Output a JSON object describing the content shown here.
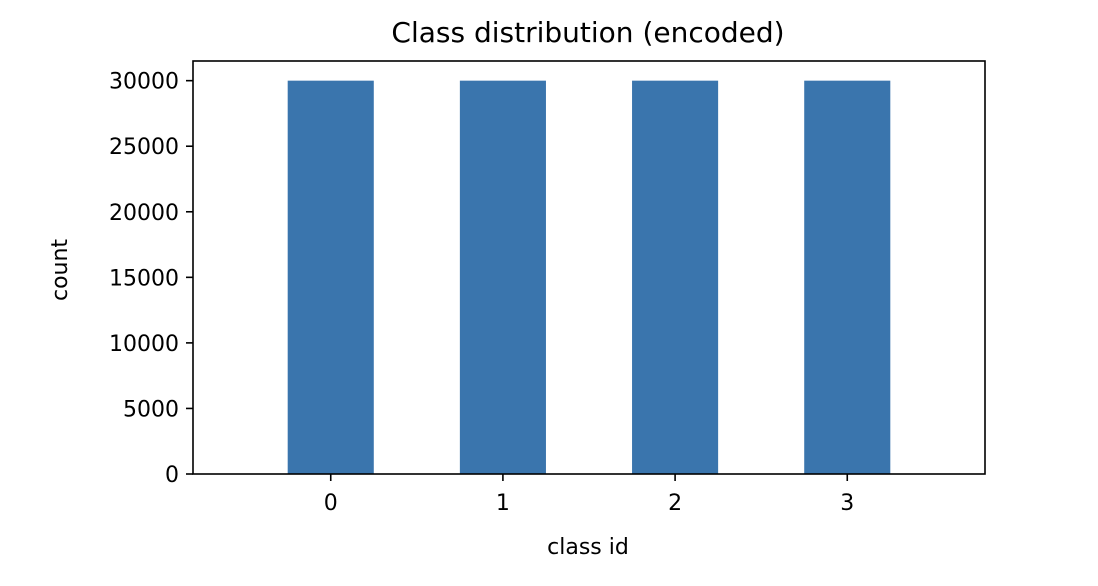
{
  "chart_data": {
    "type": "bar",
    "title": "Class distribution (encoded)",
    "xlabel": "class id",
    "ylabel": "count",
    "categories": [
      "0",
      "1",
      "2",
      "3"
    ],
    "values": [
      30000,
      30000,
      30000,
      30000
    ],
    "ylim": [
      0,
      31500
    ],
    "yticks": [
      0,
      5000,
      10000,
      15000,
      20000,
      25000,
      30000
    ],
    "ytick_labels": [
      "0",
      "5000",
      "10000",
      "15000",
      "20000",
      "25000",
      "30000"
    ],
    "bar_color": "#3a75ad",
    "grid": false,
    "legend": "none"
  }
}
